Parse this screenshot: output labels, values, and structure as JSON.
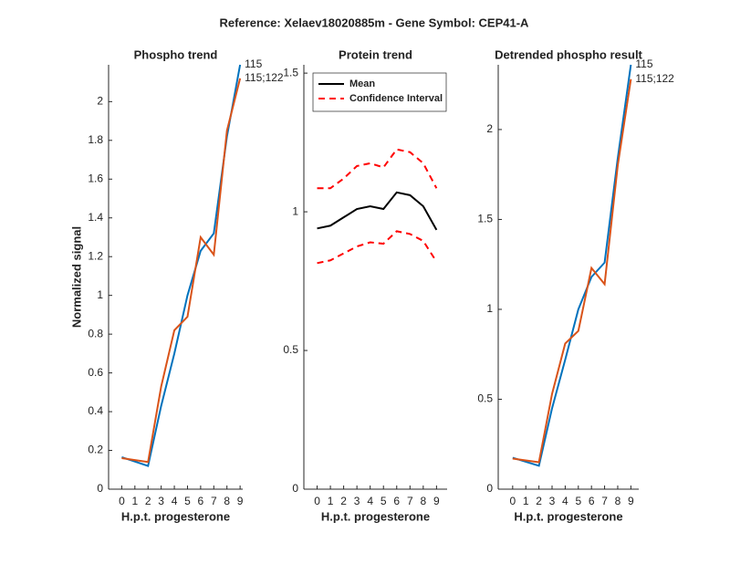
{
  "title": "Reference:  Xelaev18020885m - Gene Symbol:  CEP41-A",
  "chart_data": [
    {
      "type": "line",
      "title": "Phospho trend",
      "xlabel": "H.p.t. progesterone",
      "ylabel": "Normalized signal",
      "x": [
        0,
        2,
        3,
        4,
        5,
        6,
        7,
        8,
        9
      ],
      "series": [
        {
          "name": "115",
          "color": "#0072bd",
          "values": [
            0.165,
            0.12,
            0.43,
            0.7,
            1.0,
            1.23,
            1.32,
            1.82,
            2.19
          ]
        },
        {
          "name": "115;122",
          "color": "#d95319",
          "values": [
            0.16,
            0.14,
            0.53,
            0.82,
            0.89,
            1.3,
            1.21,
            1.85,
            2.12
          ]
        }
      ],
      "end_labels": true,
      "xlim": [
        -1,
        9.2
      ],
      "xticks": [
        0,
        1,
        2,
        3,
        4,
        5,
        6,
        7,
        8,
        9
      ],
      "ylim": [
        0,
        2.19
      ],
      "yticks": [
        0,
        0.2,
        0.4,
        0.6,
        0.8,
        1,
        1.2,
        1.4,
        1.6,
        1.8,
        2
      ]
    },
    {
      "type": "line",
      "title": "Protein trend",
      "xlabel": "H.p.t. progesterone",
      "x": [
        0,
        1,
        2,
        3,
        4,
        5,
        6,
        7,
        8,
        9
      ],
      "series": [
        {
          "name": "Mean",
          "color": "#000000",
          "values": [
            0.94,
            0.95,
            0.98,
            1.01,
            1.02,
            1.01,
            1.07,
            1.06,
            1.02,
            0.935
          ]
        },
        {
          "name": "Confidence Interval",
          "color": "#ff0000",
          "dash": true,
          "values": [
            1.085,
            1.085,
            1.12,
            1.165,
            1.175,
            1.16,
            1.225,
            1.215,
            1.175,
            1.085
          ],
          "lower": [
            0.815,
            0.825,
            0.85,
            0.875,
            0.89,
            0.885,
            0.93,
            0.92,
            0.895,
            0.82
          ]
        }
      ],
      "legend": "upper left",
      "xlim": [
        -1,
        9.8
      ],
      "xticks": [
        0,
        1,
        2,
        3,
        4,
        5,
        6,
        7,
        8,
        9
      ],
      "ylim": [
        0,
        1.53
      ],
      "yticks": [
        0,
        0.5,
        1,
        1.5
      ]
    },
    {
      "type": "line",
      "title": "Detrended phospho result",
      "xlabel": "H.p.t. progesterone",
      "x": [
        0,
        2,
        3,
        4,
        5,
        6,
        7,
        8,
        9
      ],
      "series": [
        {
          "name": "115",
          "color": "#0072bd",
          "values": [
            0.175,
            0.13,
            0.45,
            0.72,
            1.0,
            1.18,
            1.26,
            1.84,
            2.36
          ]
        },
        {
          "name": "115;122",
          "color": "#d95319",
          "values": [
            0.17,
            0.15,
            0.53,
            0.81,
            0.88,
            1.23,
            1.14,
            1.8,
            2.28
          ]
        }
      ],
      "end_labels": true,
      "xlim": [
        -1.1,
        9.6
      ],
      "xticks": [
        0,
        1,
        2,
        3,
        4,
        5,
        6,
        7,
        8,
        9
      ],
      "ylim": [
        0,
        2.36
      ],
      "yticks": [
        0,
        0.5,
        1,
        1.5,
        2
      ]
    }
  ]
}
